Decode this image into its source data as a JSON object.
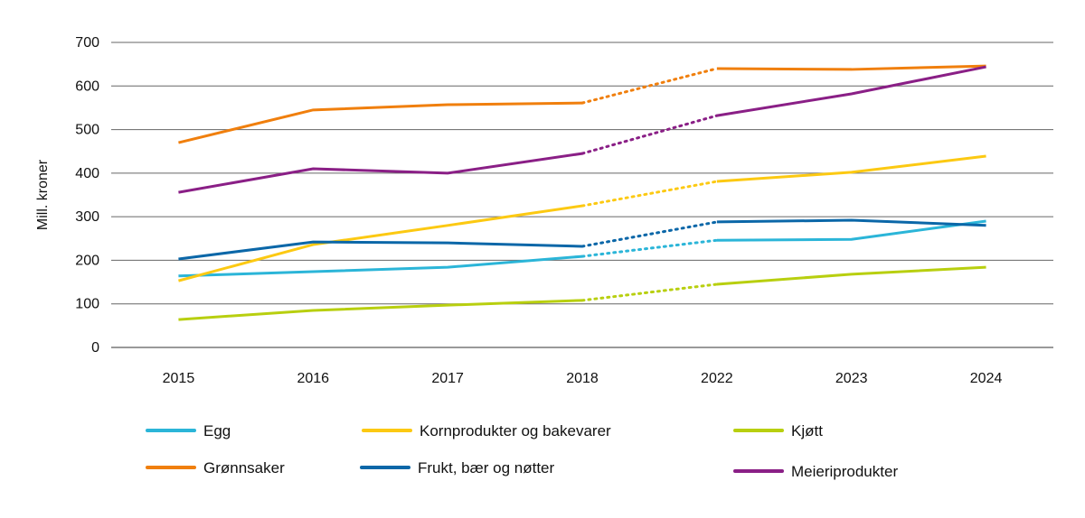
{
  "chart_data": {
    "type": "line",
    "title": "",
    "xlabel": "",
    "ylabel": "Mill. kroner",
    "ylim": [
      0,
      700
    ],
    "yticks": [
      0,
      100,
      200,
      300,
      400,
      500,
      600,
      700
    ],
    "grid": true,
    "legend_position": "bottom",
    "categories": [
      "2015",
      "2016",
      "2017",
      "2018",
      "2022",
      "2023",
      "2024"
    ],
    "dotted_segment": [
      "2018",
      "2022"
    ],
    "series": [
      {
        "name": "Egg",
        "color": "#2bb5d8",
        "values": [
          164,
          174,
          184,
          209,
          246,
          248,
          290
        ]
      },
      {
        "name": "Kornprodukter og bakevarer",
        "color": "#fcc912",
        "values": [
          153,
          236,
          280,
          325,
          381,
          402,
          439
        ]
      },
      {
        "name": "Kjøtt",
        "color": "#b8cf0f",
        "values": [
          64,
          85,
          97,
          108,
          145,
          168,
          184
        ]
      },
      {
        "name": "Grønnsaker",
        "color": "#f07f0d",
        "values": [
          470,
          545,
          557,
          561,
          640,
          638,
          646
        ]
      },
      {
        "name": "Frukt, bær og nøtter",
        "color": "#0b67a8",
        "values": [
          203,
          242,
          240,
          232,
          288,
          292,
          280
        ]
      },
      {
        "name": "Meieriprodukter",
        "color": "#8a1f86",
        "values": [
          356,
          410,
          400,
          445,
          532,
          582,
          644
        ]
      }
    ]
  }
}
